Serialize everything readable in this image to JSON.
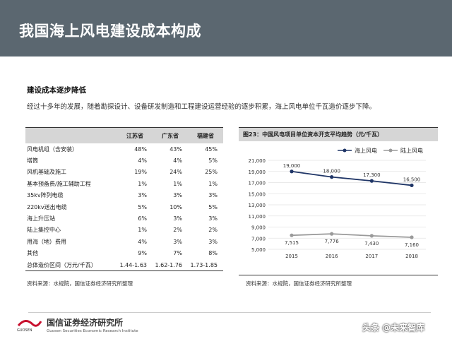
{
  "header": {
    "title": "我国海上风电建设成本构成"
  },
  "section": {
    "title": "建设成本逐步降低",
    "intro": "经过十多年的发展，随着勘探设计、设备研发制造和工程建设运营经验的逐步积累，海上风电单位千瓦造价逐步下降。"
  },
  "table": {
    "columns": [
      "",
      "江苏省",
      "广东省",
      "福建省"
    ],
    "rows": [
      {
        "name": "风电机组（含安装）",
        "values": [
          "48%",
          "43%",
          "45%"
        ]
      },
      {
        "name": "塔筒",
        "values": [
          "4%",
          "4%",
          "5%"
        ]
      },
      {
        "name": "风机基础及施工",
        "values": [
          "19%",
          "24%",
          "25%"
        ]
      },
      {
        "name": "基本预备费/施工辅助工程",
        "values": [
          "1%",
          "1%",
          "1%"
        ]
      },
      {
        "name": "35kv阵列电缆",
        "values": [
          "3%",
          "3%",
          "3%"
        ]
      },
      {
        "name": "220kv送出电缆",
        "values": [
          "5%",
          "10%",
          "5%"
        ]
      },
      {
        "name": "海上升压站",
        "values": [
          "6%",
          "3%",
          "3%"
        ]
      },
      {
        "name": "陆上集控中心",
        "values": [
          "1%",
          "2%",
          "2%"
        ]
      },
      {
        "name": "用海（地）费用",
        "values": [
          "4%",
          "3%",
          "3%"
        ]
      },
      {
        "name": "其他",
        "values": [
          "9%",
          "7%",
          "8%"
        ]
      },
      {
        "name": "总体造价区间（万元/千瓦）",
        "values": [
          "1.44-1.63",
          "1.62-1.76",
          "1.73-1.85"
        ]
      }
    ],
    "source": "资料来源：水规院，国信证券经济研究所整理"
  },
  "chart_data": {
    "type": "line",
    "title": "图23：中国风电项目单位资本开支平均趋势（元/千瓦）",
    "x": [
      "2015",
      "2016",
      "2017",
      "2018"
    ],
    "series": [
      {
        "name": "海上风电",
        "color": "#1f3566",
        "values": [
          19000,
          18000,
          17300,
          16500
        ],
        "labels": [
          "19,000",
          "18,000",
          "17,300",
          "16,500"
        ]
      },
      {
        "name": "陆上风电",
        "color": "#9a9a9a",
        "values": [
          7515,
          7776,
          7430,
          7160
        ],
        "labels": [
          "7,515",
          "7,776",
          "7,430",
          "7,160"
        ]
      }
    ],
    "ylim": [
      5000,
      21000
    ],
    "yticks": [
      5000,
      7000,
      9000,
      11000,
      13000,
      15000,
      17000,
      19000,
      21000
    ],
    "ytick_labels": [
      "5,000",
      "7,000",
      "9,000",
      "11,000",
      "13,000",
      "15,000",
      "17,000",
      "19,000",
      "21,000"
    ],
    "grid": true,
    "legend": "top",
    "source": "资料来源：水规院，国信证券经济研究所整理"
  },
  "footer": {
    "org_name": "国信证券经济研究所",
    "org_en": "Guosen Securities Economic Research Institute",
    "logo_text": "GUOSEN",
    "watermark": "头条 @未来智库"
  }
}
